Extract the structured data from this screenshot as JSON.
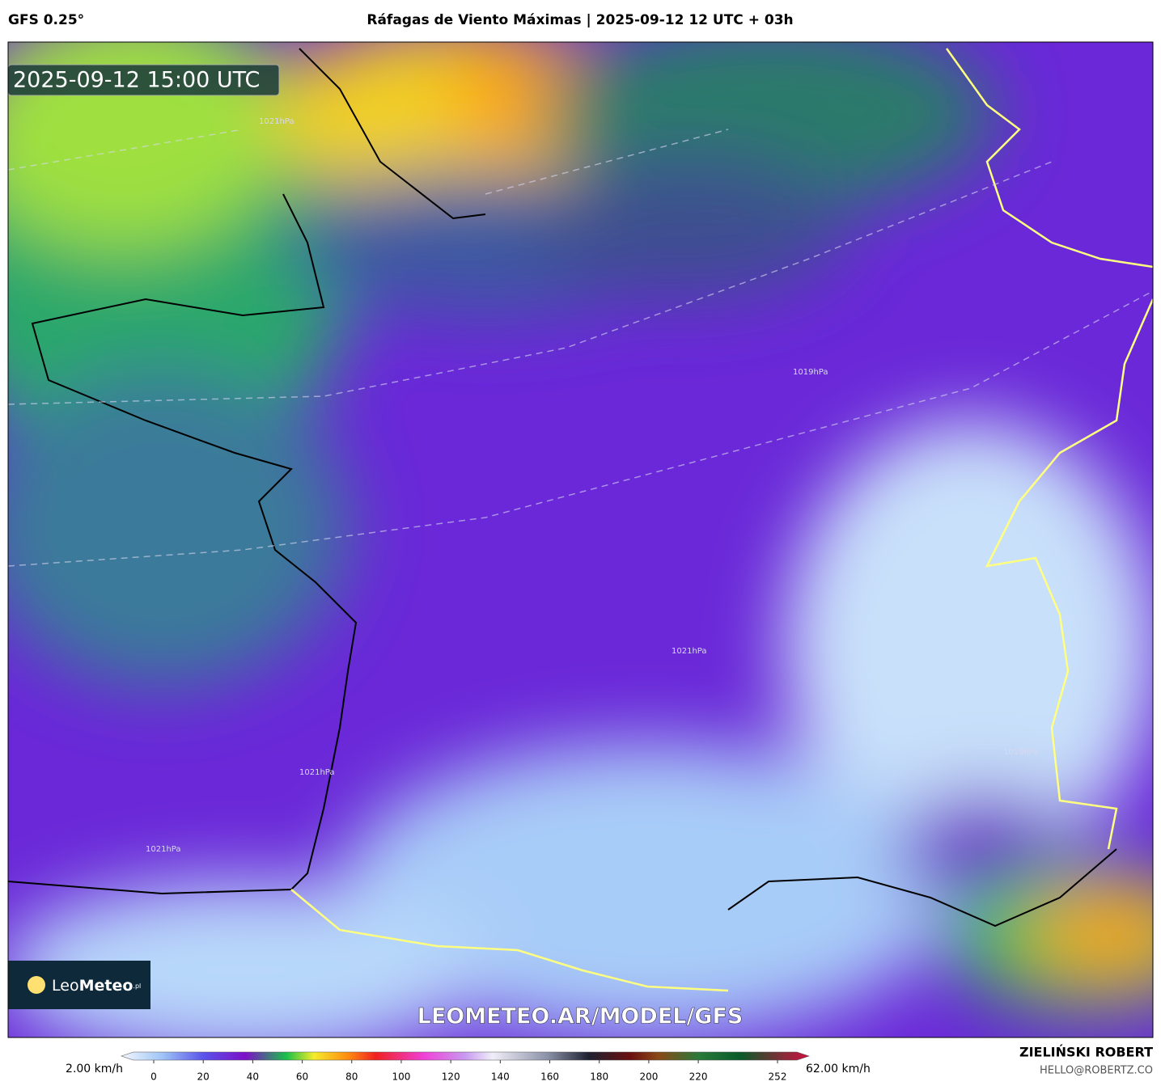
{
  "header": {
    "model": "GFS 0.25°",
    "title": "Ráfagas de Viento Máximas | 2025-09-12 12 UTC + 03h"
  },
  "map": {
    "timestamp": "2025-09-12 15:00 UTC",
    "watermark": "LEOMETEO.AR/MODEL/GFS",
    "logo": {
      "leo": "Leo",
      "meteo": "Meteo",
      "suffix": ".pl"
    },
    "isobars": [
      "1021hPa",
      "1019hPa",
      "1021hPa",
      "1021hPa",
      "1019hPa",
      "1021hPa"
    ]
  },
  "colorbar": {
    "min_label": "2.00 km/h",
    "max_label": "62.00 km/h",
    "ticks": [
      0,
      20,
      40,
      60,
      80,
      100,
      120,
      140,
      160,
      180,
      200,
      220,
      252
    ]
  },
  "footer": {
    "author": "ZIELIŃSKI ROBERT",
    "email": "HELLO@ROBERTZ.CO"
  }
}
